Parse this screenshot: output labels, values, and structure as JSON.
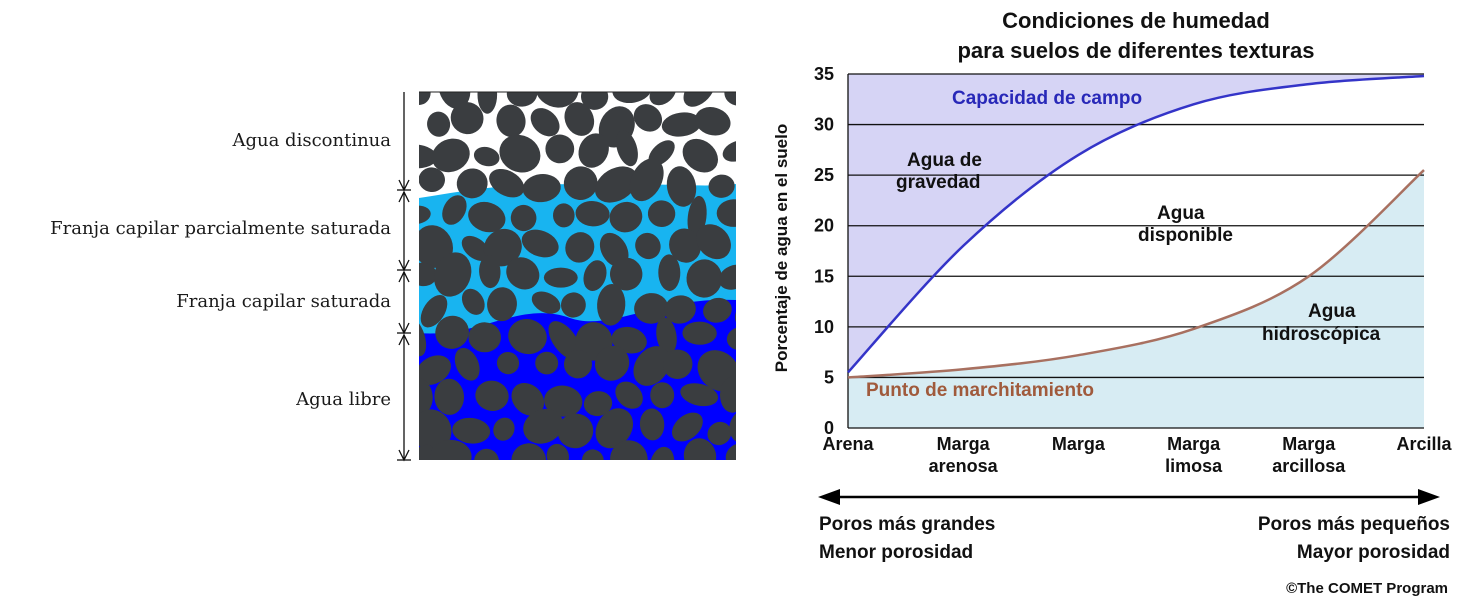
{
  "soil_diagram": {
    "zones": [
      {
        "label": "Agua discontinua"
      },
      {
        "label": "Franja capilar parcialmente saturada"
      },
      {
        "label": "Franja capilar saturada"
      },
      {
        "label": "Agua libre"
      }
    ],
    "colors": {
      "stone": "#3a3d40",
      "dry": "#ffffff",
      "partial": "#18b4f0",
      "saturated": "#0000ff"
    }
  },
  "chart": {
    "title_line1": "Condiciones de humedad",
    "title_line2": "para suelos de diferentes texturas",
    "ylabel": "Porcentaje de agua en el suelo",
    "region_labels": {
      "capacity": "Capacidad de campo",
      "gravity_1": "Agua de",
      "gravity_2": "gravedad",
      "available_1": "Agua",
      "available_2": "disponible",
      "hygro_1": "Agua",
      "hygro_2": "hidroscópica",
      "wilting": "Punto de marchitamiento"
    },
    "x_tick_labels": [
      {
        "line1": "Arena",
        "line2": ""
      },
      {
        "line1": "Marga",
        "line2": "arenosa"
      },
      {
        "line1": "Marga",
        "line2": ""
      },
      {
        "line1": "Marga",
        "line2": "limosa"
      },
      {
        "line1": "Marga",
        "line2": "arcillosa"
      },
      {
        "line1": "Arcilla",
        "line2": ""
      }
    ],
    "left_note_1": "Poros más grandes",
    "left_note_2": "Menor porosidad",
    "right_note_1": "Poros más pequeños",
    "right_note_2": "Mayor porosidad",
    "credit": "©The COMET Program",
    "colors": {
      "gravity_fill": "#d6d4f5",
      "hygro_fill": "#d7ecf3",
      "capacity_line": "#3434c8",
      "wilting_line": "#a87060",
      "capacity_text": "#2828b8",
      "wilting_text": "#a05a3c"
    }
  },
  "chart_data": {
    "type": "line",
    "title": "Condiciones de humedad para suelos de diferentes texturas",
    "ylabel": "Porcentaje de agua en el suelo",
    "xlabel": "",
    "categories": [
      "Arena",
      "Marga arenosa",
      "Marga",
      "Marga limosa",
      "Marga arcillosa",
      "Arcilla"
    ],
    "ylim": [
      0,
      35
    ],
    "yticks": [
      0,
      5,
      10,
      15,
      20,
      25,
      30,
      35
    ],
    "grid": true,
    "series": [
      {
        "name": "Capacidad de campo",
        "values": [
          5.5,
          18,
          27,
          32,
          34,
          34.8
        ]
      },
      {
        "name": "Punto de marchitamiento",
        "values": [
          5,
          5.8,
          7.2,
          9.8,
          15,
          25.5
        ]
      }
    ]
  }
}
